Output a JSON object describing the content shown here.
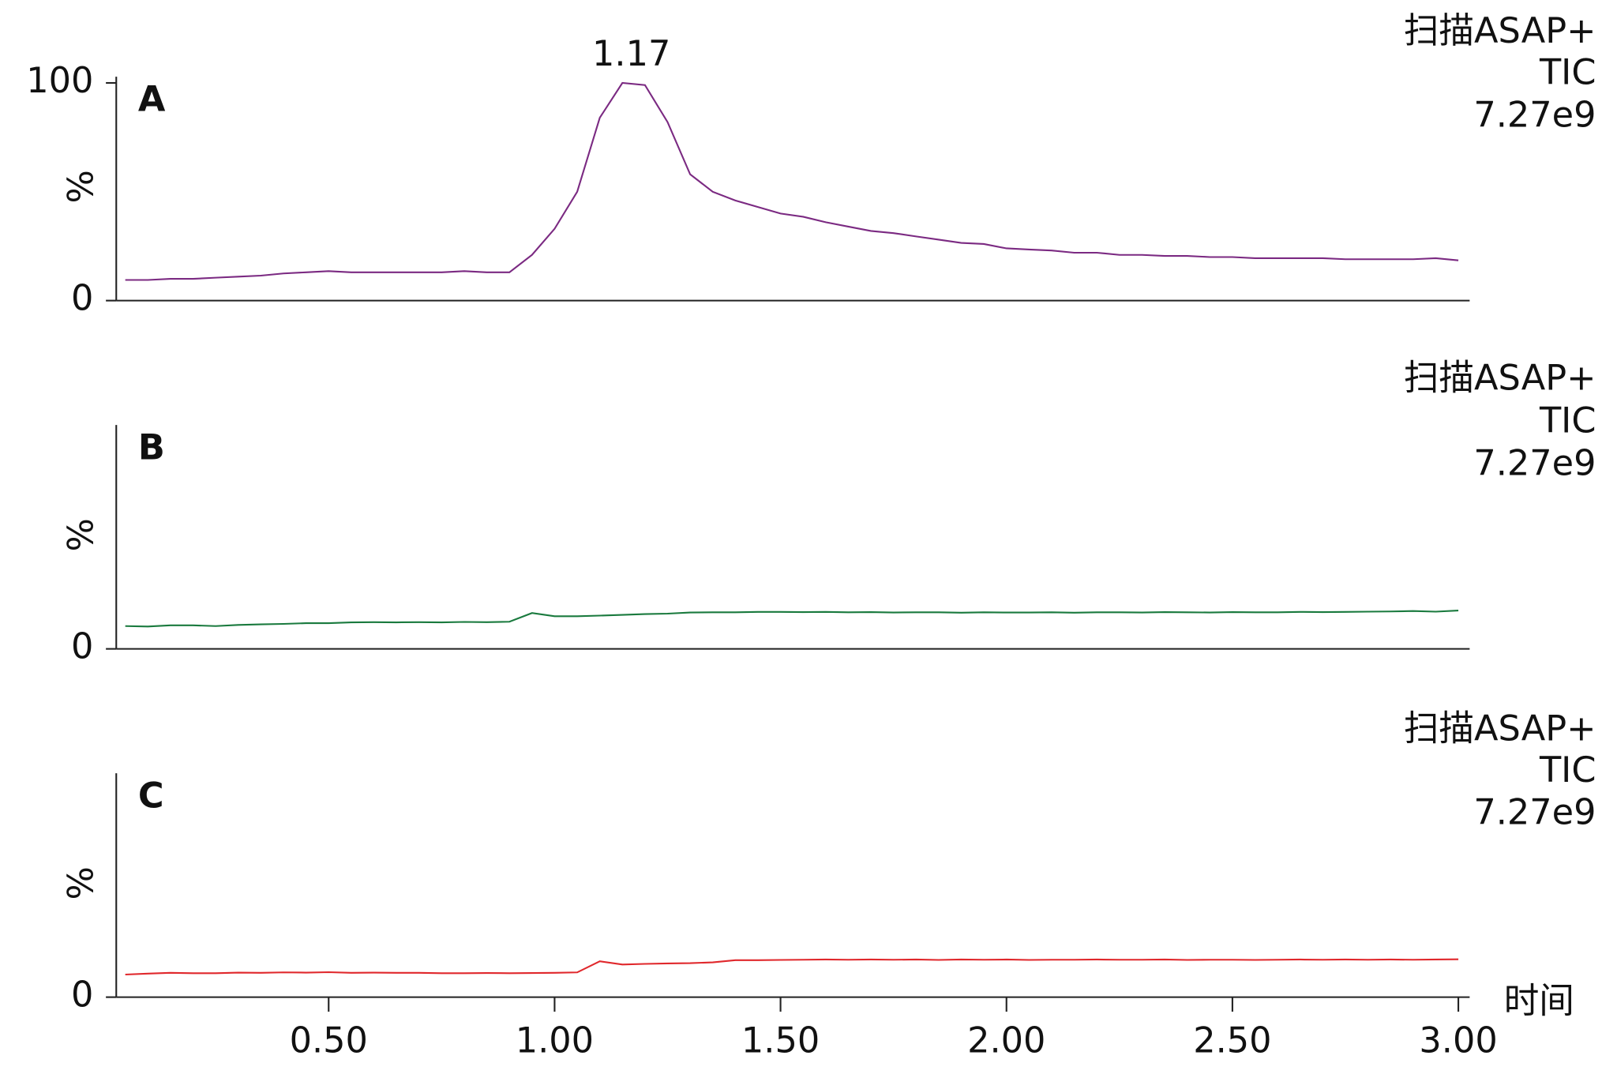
{
  "chart_data": [
    {
      "type": "line",
      "panel_label": "A",
      "ylabel": "%",
      "legend_lines": [
        "扫描ASAP+",
        "TIC",
        "7.27e9"
      ],
      "annotation": {
        "x": 1.17,
        "y": 100,
        "text": "1.17"
      },
      "xlim": [
        0.03,
        3.025
      ],
      "ylim": [
        0,
        100
      ],
      "yticks": [
        0,
        100
      ],
      "x": [
        0.05,
        0.1,
        0.15,
        0.2,
        0.25,
        0.3,
        0.35,
        0.4,
        0.45,
        0.5,
        0.55,
        0.6,
        0.65,
        0.7,
        0.75,
        0.8,
        0.85,
        0.9,
        0.95,
        1.0,
        1.05,
        1.1,
        1.15,
        1.2,
        1.25,
        1.3,
        1.35,
        1.4,
        1.45,
        1.5,
        1.55,
        1.6,
        1.65,
        1.7,
        1.75,
        1.8,
        1.85,
        1.9,
        1.95,
        2.0,
        2.05,
        2.1,
        2.15,
        2.2,
        2.25,
        2.3,
        2.35,
        2.4,
        2.45,
        2.5,
        2.55,
        2.6,
        2.65,
        2.7,
        2.75,
        2.8,
        2.85,
        2.9,
        2.95,
        3.0
      ],
      "series": [
        {
          "name": "扫描ASAP+",
          "color": "#7b2a82",
          "values": [
            9.5,
            9.5,
            10,
            10,
            10.5,
            11,
            11.5,
            12.5,
            13,
            13.5,
            13,
            13,
            13,
            13,
            13,
            13.5,
            13,
            13,
            21,
            33,
            50,
            84,
            100,
            99,
            82,
            58,
            50,
            46,
            43,
            40,
            38.5,
            36,
            34,
            32,
            31,
            29.5,
            28,
            26.5,
            26,
            24,
            23.5,
            23,
            22,
            22,
            21,
            21,
            20.5,
            20.5,
            20,
            20,
            19.5,
            19.5,
            19.5,
            19.5,
            19,
            19,
            19,
            19,
            19.5,
            18.5
          ]
        }
      ]
    },
    {
      "type": "line",
      "panel_label": "B",
      "ylabel": "%",
      "legend_lines": [
        "扫描ASAP+",
        "TIC",
        "7.27e9"
      ],
      "xlim": [
        0.03,
        3.025
      ],
      "ylim": [
        0,
        100
      ],
      "yticks": [
        0
      ],
      "x": [
        0.05,
        0.1,
        0.15,
        0.2,
        0.25,
        0.3,
        0.35,
        0.4,
        0.45,
        0.5,
        0.55,
        0.6,
        0.65,
        0.7,
        0.75,
        0.8,
        0.85,
        0.9,
        0.95,
        1.0,
        1.05,
        1.1,
        1.15,
        1.2,
        1.25,
        1.3,
        1.35,
        1.4,
        1.45,
        1.5,
        1.55,
        1.6,
        1.65,
        1.7,
        1.75,
        1.8,
        1.85,
        1.9,
        1.95,
        2.0,
        2.05,
        2.1,
        2.15,
        2.2,
        2.25,
        2.3,
        2.35,
        2.4,
        2.45,
        2.5,
        2.55,
        2.6,
        2.65,
        2.7,
        2.75,
        2.8,
        2.85,
        2.9,
        2.95,
        3.0
      ],
      "series": [
        {
          "name": "扫描ASAP+",
          "color": "#1a7a3e",
          "values": [
            10.5,
            10.3,
            10.8,
            10.8,
            10.5,
            11,
            11.3,
            11.5,
            11.8,
            11.8,
            12.2,
            12.3,
            12.2,
            12.3,
            12.2,
            12.4,
            12.3,
            12.5,
            16.5,
            15,
            15,
            15.3,
            15.6,
            16,
            16.2,
            16.7,
            16.8,
            16.8,
            17,
            17,
            16.9,
            17,
            16.8,
            16.9,
            16.7,
            16.8,
            16.8,
            16.6,
            16.8,
            16.7,
            16.7,
            16.8,
            16.6,
            16.8,
            16.8,
            16.7,
            16.9,
            16.8,
            16.7,
            16.9,
            16.8,
            16.8,
            17,
            16.9,
            17,
            17.1,
            17.2,
            17.4,
            17.1,
            17.6
          ]
        }
      ]
    },
    {
      "type": "line",
      "panel_label": "C",
      "ylabel": "%",
      "legend_lines": [
        "扫描ASAP+",
        "TIC",
        "7.27e9"
      ],
      "xlabel": "时间",
      "xlim": [
        0.03,
        3.025
      ],
      "ylim": [
        0,
        100
      ],
      "yticks": [
        0
      ],
      "xticks": [
        {
          "value": 0.5,
          "label": "0.50"
        },
        {
          "value": 1.0,
          "label": "1.00"
        },
        {
          "value": 1.5,
          "label": "1.50"
        },
        {
          "value": 2.0,
          "label": "2.00"
        },
        {
          "value": 2.5,
          "label": "2.50"
        },
        {
          "value": 3.0,
          "label": "3.00"
        }
      ],
      "x": [
        0.05,
        0.1,
        0.15,
        0.2,
        0.25,
        0.3,
        0.35,
        0.4,
        0.45,
        0.5,
        0.55,
        0.6,
        0.65,
        0.7,
        0.75,
        0.8,
        0.85,
        0.9,
        0.95,
        1.0,
        1.05,
        1.1,
        1.15,
        1.2,
        1.25,
        1.3,
        1.35,
        1.4,
        1.45,
        1.5,
        1.55,
        1.6,
        1.65,
        1.7,
        1.75,
        1.8,
        1.85,
        1.9,
        1.95,
        2.0,
        2.05,
        2.1,
        2.15,
        2.2,
        2.25,
        2.3,
        2.35,
        2.4,
        2.45,
        2.5,
        2.55,
        2.6,
        2.65,
        2.7,
        2.75,
        2.8,
        2.85,
        2.9,
        2.95,
        3.0
      ],
      "series": [
        {
          "name": "扫描ASAP+",
          "color": "#e0282c",
          "values": [
            10.4,
            10.8,
            11.2,
            11,
            11,
            11.3,
            11.2,
            11.4,
            11.3,
            11.5,
            11.2,
            11.3,
            11.2,
            11.2,
            11,
            11,
            11.1,
            11,
            11.1,
            11.2,
            11.4,
            16.5,
            15,
            15.3,
            15.5,
            15.6,
            16,
            17,
            17,
            17.1,
            17.2,
            17.3,
            17.2,
            17.3,
            17.2,
            17.3,
            17.1,
            17.3,
            17.2,
            17.3,
            17.1,
            17.2,
            17.2,
            17.3,
            17.2,
            17.2,
            17.3,
            17.1,
            17.2,
            17.2,
            17.1,
            17.2,
            17.3,
            17.2,
            17.3,
            17.2,
            17.3,
            17.2,
            17.3,
            17.4
          ]
        }
      ]
    }
  ]
}
